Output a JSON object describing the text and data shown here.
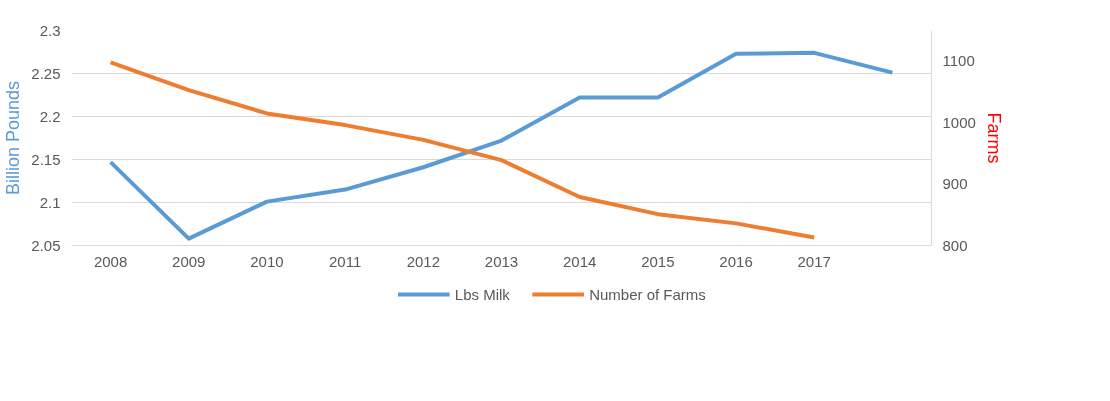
{
  "chart_data": {
    "type": "line",
    "ylabel": "Billion Pounds",
    "y2label": "Farms",
    "categories": [
      "2008",
      "2009",
      "2010",
      "2011",
      "2012",
      "2013",
      "2014",
      "2015",
      "2016",
      "2017",
      null
    ],
    "series": [
      {
        "name": "Lbs Milk",
        "color": "#5b9bd5",
        "values": [
          2.147,
          2.058,
          2.101,
          2.115,
          2.141,
          2.172,
          2.222,
          2.222,
          2.273,
          2.274,
          2.251
        ]
      },
      {
        "name": "Number of Farms",
        "color": "#ed7d31",
        "axis": "y2",
        "values": [
          1098,
          1053,
          1015,
          996,
          972,
          939,
          879,
          851,
          836,
          813,
          null
        ]
      }
    ],
    "ylim": [
      2.05,
      2.3
    ],
    "yticks": [
      2.05,
      2.1,
      2.15,
      2.2,
      2.25,
      2.3
    ],
    "y2lim": [
      800,
      1150
    ],
    "y2ticks": [
      800,
      900,
      1000,
      1100
    ],
    "grid": "y",
    "legend": "bottom",
    "marker": "none",
    "line_style": "solid"
  }
}
